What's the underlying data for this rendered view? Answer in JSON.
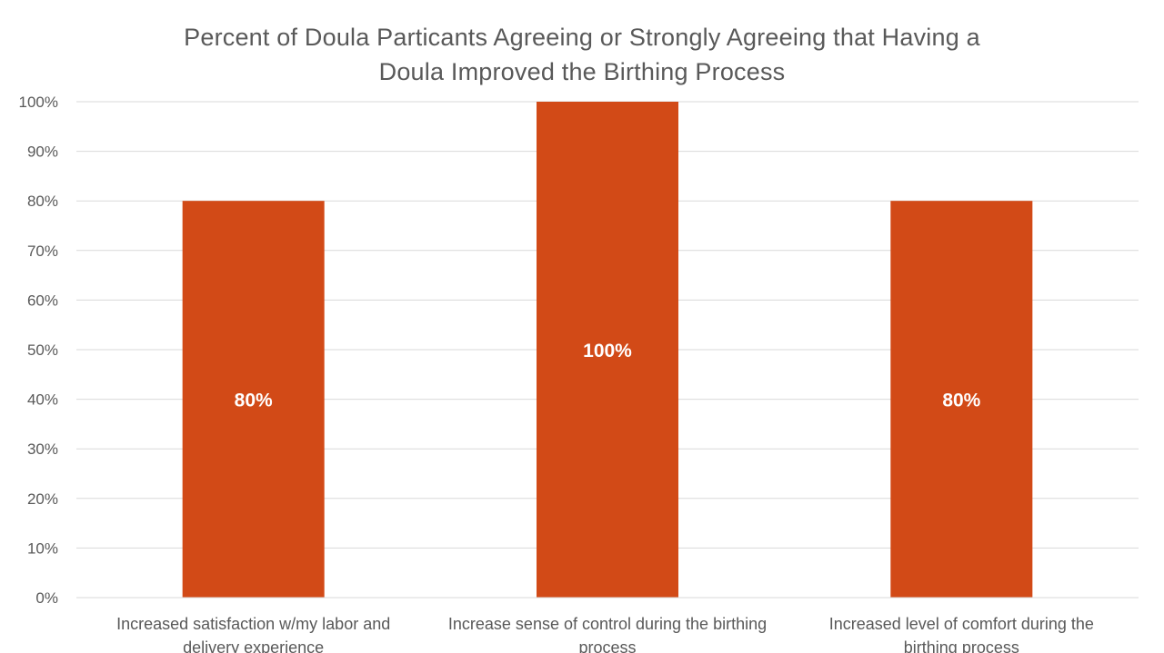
{
  "chart_data": {
    "type": "bar",
    "title_lines": [
      "Percent of Doula Particants Agreeing or Strongly Agreeing that Having a",
      "Doula Improved the Birthing Process"
    ],
    "categories": [
      [
        "Increased satisfaction w/my labor and",
        "delivery experience"
      ],
      [
        "Increase sense of control during the birthing",
        "process"
      ],
      [
        "Increased level of comfort during the",
        "birthing process"
      ]
    ],
    "values": [
      80,
      100,
      80
    ],
    "data_labels": [
      "80%",
      "100%",
      "80%"
    ],
    "ylim": [
      0,
      100
    ],
    "yticks": [
      0,
      10,
      20,
      30,
      40,
      50,
      60,
      70,
      80,
      90,
      100
    ],
    "ytick_labels": [
      "0%",
      "10%",
      "20%",
      "30%",
      "40%",
      "50%",
      "60%",
      "70%",
      "80%",
      "90%",
      "100%"
    ],
    "grid": true,
    "legend": "none",
    "colors": {
      "bar": "#D24A17",
      "grid": "#D9D9D9",
      "axis_text": "#595959",
      "label_text": "#ffffff"
    }
  }
}
